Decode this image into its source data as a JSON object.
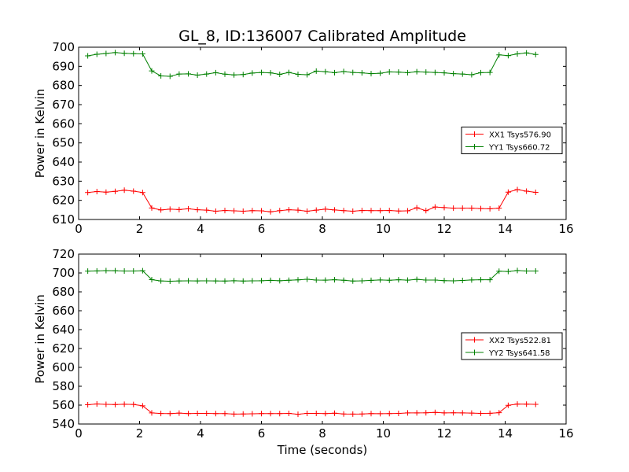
{
  "chart_data": [
    {
      "type": "line",
      "title": "GL_8, ID:136007 Calibrated Amplitude",
      "xlabel": "",
      "ylabel": "Power in Kelvin",
      "xlim": [
        0,
        16
      ],
      "ylim": [
        610,
        700
      ],
      "xticks": [
        "0",
        "2",
        "4",
        "6",
        "8",
        "10",
        "12",
        "14",
        "16"
      ],
      "yticks": [
        "610",
        "620",
        "630",
        "640",
        "650",
        "660",
        "670",
        "680",
        "690",
        "700"
      ],
      "legend_position": "center-right",
      "marker": "plus",
      "x": [
        0.3,
        0.6,
        0.9,
        1.2,
        1.5,
        1.8,
        2.1,
        2.4,
        2.7,
        3.0,
        3.3,
        3.6,
        3.9,
        4.2,
        4.5,
        4.8,
        5.1,
        5.4,
        5.7,
        6.0,
        6.3,
        6.6,
        6.9,
        7.2,
        7.5,
        7.8,
        8.1,
        8.4,
        8.7,
        9.0,
        9.3,
        9.6,
        9.9,
        10.2,
        10.5,
        10.8,
        11.1,
        11.4,
        11.7,
        12.0,
        12.3,
        12.6,
        12.9,
        13.2,
        13.5,
        13.8,
        14.1,
        14.4,
        14.7,
        15.0
      ],
      "series": [
        {
          "name": "XX1 Tsys576.90",
          "color": "#ff0000",
          "values": [
            624.1,
            624.6,
            624.3,
            624.7,
            625.3,
            624.8,
            624.1,
            616.0,
            615.0,
            615.4,
            615.2,
            615.6,
            615.1,
            614.9,
            614.3,
            614.7,
            614.5,
            614.3,
            614.6,
            614.5,
            614.0,
            614.6,
            615.1,
            614.9,
            614.3,
            614.9,
            615.4,
            615.0,
            614.6,
            614.3,
            614.7,
            614.6,
            614.6,
            614.7,
            614.4,
            614.5,
            616.1,
            614.6,
            616.5,
            616.2,
            615.9,
            615.9,
            615.9,
            615.7,
            615.6,
            615.9,
            624.3,
            625.6,
            624.8,
            624.2
          ]
        },
        {
          "name": "YY1 Tsys660.72",
          "color": "#008000",
          "values": [
            695.5,
            696.3,
            696.7,
            697.2,
            696.8,
            696.6,
            696.5,
            687.6,
            685.0,
            684.8,
            686.0,
            686.1,
            685.4,
            686.0,
            686.7,
            685.9,
            685.5,
            685.7,
            686.5,
            686.8,
            686.6,
            685.8,
            686.8,
            685.8,
            685.6,
            687.5,
            687.2,
            686.7,
            687.3,
            686.8,
            686.6,
            686.2,
            686.4,
            687.1,
            687.0,
            686.7,
            687.2,
            687.0,
            686.8,
            686.6,
            686.2,
            686.0,
            685.6,
            686.7,
            686.8,
            696.0,
            695.6,
            696.5,
            697.0,
            696.2
          ]
        }
      ]
    },
    {
      "type": "line",
      "title": "",
      "xlabel": "Time (seconds)",
      "ylabel": "Power in Kelvin",
      "xlim": [
        0,
        16
      ],
      "ylim": [
        540,
        720
      ],
      "xticks": [
        "0",
        "2",
        "4",
        "6",
        "8",
        "10",
        "12",
        "14",
        "16"
      ],
      "yticks": [
        "540",
        "560",
        "580",
        "600",
        "620",
        "640",
        "660",
        "680",
        "700",
        "720"
      ],
      "legend_position": "center-right",
      "marker": "plus",
      "x": [
        0.3,
        0.6,
        0.9,
        1.2,
        1.5,
        1.8,
        2.1,
        2.4,
        2.7,
        3.0,
        3.3,
        3.6,
        3.9,
        4.2,
        4.5,
        4.8,
        5.1,
        5.4,
        5.7,
        6.0,
        6.3,
        6.6,
        6.9,
        7.2,
        7.5,
        7.8,
        8.1,
        8.4,
        8.7,
        9.0,
        9.3,
        9.6,
        9.9,
        10.2,
        10.5,
        10.8,
        11.1,
        11.4,
        11.7,
        12.0,
        12.3,
        12.6,
        12.9,
        13.2,
        13.5,
        13.8,
        14.1,
        14.4,
        14.7,
        15.0
      ],
      "series": [
        {
          "name": "XX2 Tsys522.81",
          "color": "#ff0000",
          "values": [
            560.4,
            561.2,
            560.8,
            560.6,
            560.9,
            560.7,
            559.3,
            551.8,
            551.1,
            551.0,
            551.6,
            551.0,
            551.2,
            551.2,
            551.0,
            551.0,
            550.5,
            550.6,
            550.8,
            551.0,
            551.0,
            551.0,
            551.2,
            550.3,
            551.3,
            551.2,
            551.0,
            551.5,
            550.6,
            550.5,
            550.6,
            551.0,
            550.9,
            551.0,
            551.2,
            551.8,
            551.8,
            551.9,
            552.3,
            551.8,
            551.9,
            551.8,
            551.6,
            551.3,
            551.4,
            552.0,
            559.8,
            561.1,
            561.0,
            560.8
          ]
        },
        {
          "name": "YY2 Tsys641.58",
          "color": "#008000",
          "values": [
            702.0,
            702.2,
            702.5,
            702.4,
            702.1,
            702.1,
            702.4,
            692.9,
            691.6,
            691.3,
            691.6,
            691.7,
            691.6,
            691.7,
            691.6,
            691.5,
            691.8,
            691.5,
            691.7,
            691.8,
            692.2,
            691.8,
            692.3,
            692.7,
            693.3,
            692.5,
            692.4,
            692.8,
            692.3,
            691.5,
            691.7,
            692.2,
            692.6,
            692.3,
            692.8,
            692.4,
            693.2,
            692.5,
            692.5,
            691.9,
            691.7,
            692.1,
            692.6,
            692.8,
            692.8,
            701.9,
            701.6,
            702.6,
            702.1,
            702.1
          ]
        }
      ]
    }
  ]
}
